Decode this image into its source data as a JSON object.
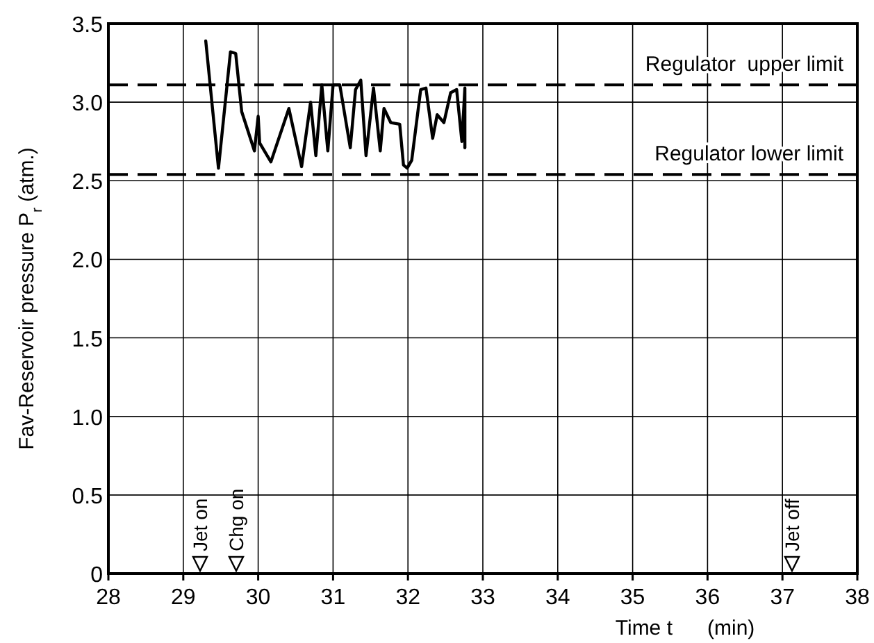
{
  "chart_data": {
    "type": "line",
    "xlabel": "Time t      (min)",
    "ylabel": "Fav-Reservoir pressure  P$_{r}$ (atm.)",
    "xlim": [
      28,
      38
    ],
    "xticks": [
      28,
      29,
      30,
      31,
      32,
      33,
      34,
      35,
      36,
      37,
      38
    ],
    "ylim": [
      0,
      3.5
    ],
    "yticks": [
      0,
      {
        "value": 0.5,
        "label": "0.5"
      },
      {
        "value": 1,
        "label": "1.0"
      },
      {
        "value": 1.5,
        "label": "1.5"
      },
      {
        "value": 2,
        "label": "2.0"
      },
      {
        "value": 2.5,
        "label": "2.5"
      },
      {
        "value": 3,
        "label": "3.0"
      },
      {
        "value": 3.5,
        "label": "3.5"
      }
    ],
    "grid": true,
    "marker": "none",
    "line_style": "solid",
    "series": [
      {
        "color": "#000000",
        "x": [
          29.3,
          29.47,
          29.63,
          29.7,
          29.78,
          29.95,
          30.0,
          30.02,
          30.17,
          30.41,
          30.58,
          30.7,
          30.77,
          30.85,
          30.93,
          31.0,
          31.09,
          31.23,
          31.3,
          31.37,
          31.44,
          31.54,
          31.63,
          31.68,
          31.77,
          31.89,
          31.94,
          31.99,
          32.05,
          32.17,
          32.24,
          32.33,
          32.39,
          32.48,
          32.57,
          32.65,
          32.72,
          32.76,
          32.76
        ],
        "values": [
          3.39,
          2.58,
          3.32,
          3.31,
          2.94,
          2.69,
          2.91,
          2.74,
          2.62,
          2.96,
          2.59,
          3.0,
          2.66,
          3.11,
          2.69,
          3.11,
          3.11,
          2.71,
          3.08,
          3.14,
          2.66,
          3.09,
          2.69,
          2.96,
          2.87,
          2.86,
          2.6,
          2.58,
          2.63,
          3.08,
          3.09,
          2.77,
          2.92,
          2.87,
          3.06,
          3.08,
          2.75,
          3.09,
          2.71
        ]
      }
    ],
    "ref_lines": [
      {
        "axis": "y",
        "value": 3.11,
        "label": "Regulator  upper limit",
        "line_style": "dashed"
      },
      {
        "axis": "y",
        "value": 2.54,
        "label": "Regulator lower limit",
        "line_style": "dashed"
      }
    ],
    "annotations": [
      "Jet on",
      "Chg on",
      "Jet off"
    ]
  }
}
